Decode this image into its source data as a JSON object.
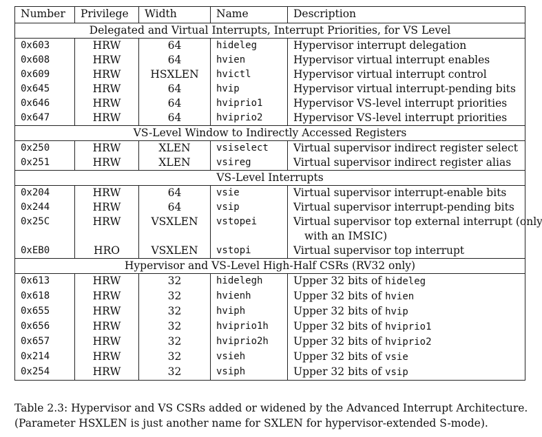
{
  "headers": {
    "number": "Number",
    "privilege": "Privilege",
    "width": "Width",
    "name": "Name",
    "description": "Description"
  },
  "sections": [
    {
      "title": "Delegated and Virtual Interrupts, Interrupt Priorities, for VS Level",
      "rows": [
        {
          "number": "0x603",
          "privilege": "HRW",
          "width": "64",
          "name": "hideleg",
          "desc": "Hypervisor interrupt delegation"
        },
        {
          "number": "0x608",
          "privilege": "HRW",
          "width": "64",
          "name": "hvien",
          "desc": "Hypervisor virtual interrupt enables"
        },
        {
          "number": "0x609",
          "privilege": "HRW",
          "width": "HSXLEN",
          "name": "hvictl",
          "desc": "Hypervisor virtual interrupt control"
        },
        {
          "number": "0x645",
          "privilege": "HRW",
          "width": "64",
          "name": "hvip",
          "desc": "Hypervisor virtual interrupt-pending bits"
        },
        {
          "number": "0x646",
          "privilege": "HRW",
          "width": "64",
          "name": "hviprio1",
          "desc": "Hypervisor VS-level interrupt priorities"
        },
        {
          "number": "0x647",
          "privilege": "HRW",
          "width": "64",
          "name": "hviprio2",
          "desc": "Hypervisor VS-level interrupt priorities"
        }
      ]
    },
    {
      "title": "VS-Level Window to Indirectly Accessed Registers",
      "rows": [
        {
          "number": "0x250",
          "privilege": "HRW",
          "width": "XLEN",
          "name": "vsiselect",
          "desc": "Virtual supervisor indirect register select"
        },
        {
          "number": "0x251",
          "privilege": "HRW",
          "width": "XLEN",
          "name": "vsireg",
          "desc": "Virtual supervisor indirect register alias"
        }
      ]
    },
    {
      "title": "VS-Level Interrupts",
      "rows": [
        {
          "number": "0x204",
          "privilege": "HRW",
          "width": "64",
          "name": "vsie",
          "desc": "Virtual supervisor interrupt-enable bits"
        },
        {
          "number": "0x244",
          "privilege": "HRW",
          "width": "64",
          "name": "vsip",
          "desc": "Virtual supervisor interrupt-pending bits"
        },
        {
          "number": "0x25C",
          "privilege": "HRW",
          "width": "VSXLEN",
          "name": "vstopei",
          "desc": "Virtual supervisor top external interrupt (only",
          "desc2": "with an IMSIC)"
        },
        {
          "number": "0xEB0",
          "privilege": "HRO",
          "width": "VSXLEN",
          "name": "vstopi",
          "desc": "Virtual supervisor top interrupt"
        }
      ]
    },
    {
      "title": "Hypervisor and VS-Level High-Half CSRs (RV32 only)",
      "rows": [
        {
          "number": "0x613",
          "privilege": "HRW",
          "width": "32",
          "name": "hidelegh",
          "desc_prefix": "Upper 32 bits of ",
          "desc_code": "hideleg"
        },
        {
          "number": "0x618",
          "privilege": "HRW",
          "width": "32",
          "name": "hvienh",
          "desc_prefix": "Upper 32 bits of ",
          "desc_code": "hvien"
        },
        {
          "number": "0x655",
          "privilege": "HRW",
          "width": "32",
          "name": "hviph",
          "desc_prefix": "Upper 32 bits of ",
          "desc_code": "hvip"
        },
        {
          "number": "0x656",
          "privilege": "HRW",
          "width": "32",
          "name": "hviprio1h",
          "desc_prefix": "Upper 32 bits of ",
          "desc_code": "hviprio1"
        },
        {
          "number": "0x657",
          "privilege": "HRW",
          "width": "32",
          "name": "hviprio2h",
          "desc_prefix": "Upper 32 bits of ",
          "desc_code": "hviprio2"
        },
        {
          "number": "0x214",
          "privilege": "HRW",
          "width": "32",
          "name": "vsieh",
          "desc_prefix": "Upper 32 bits of ",
          "desc_code": "vsie"
        },
        {
          "number": "0x254",
          "privilege": "HRW",
          "width": "32",
          "name": "vsiph",
          "desc_prefix": "Upper 32 bits of ",
          "desc_code": "vsip"
        }
      ]
    }
  ],
  "caption": {
    "line1": "Table 2.3: Hypervisor and VS CSRs added or widened by the Advanced Interrupt Architecture.",
    "line2": "(Parameter HSXLEN is just another name for SXLEN for hypervisor-extended S-mode)."
  }
}
